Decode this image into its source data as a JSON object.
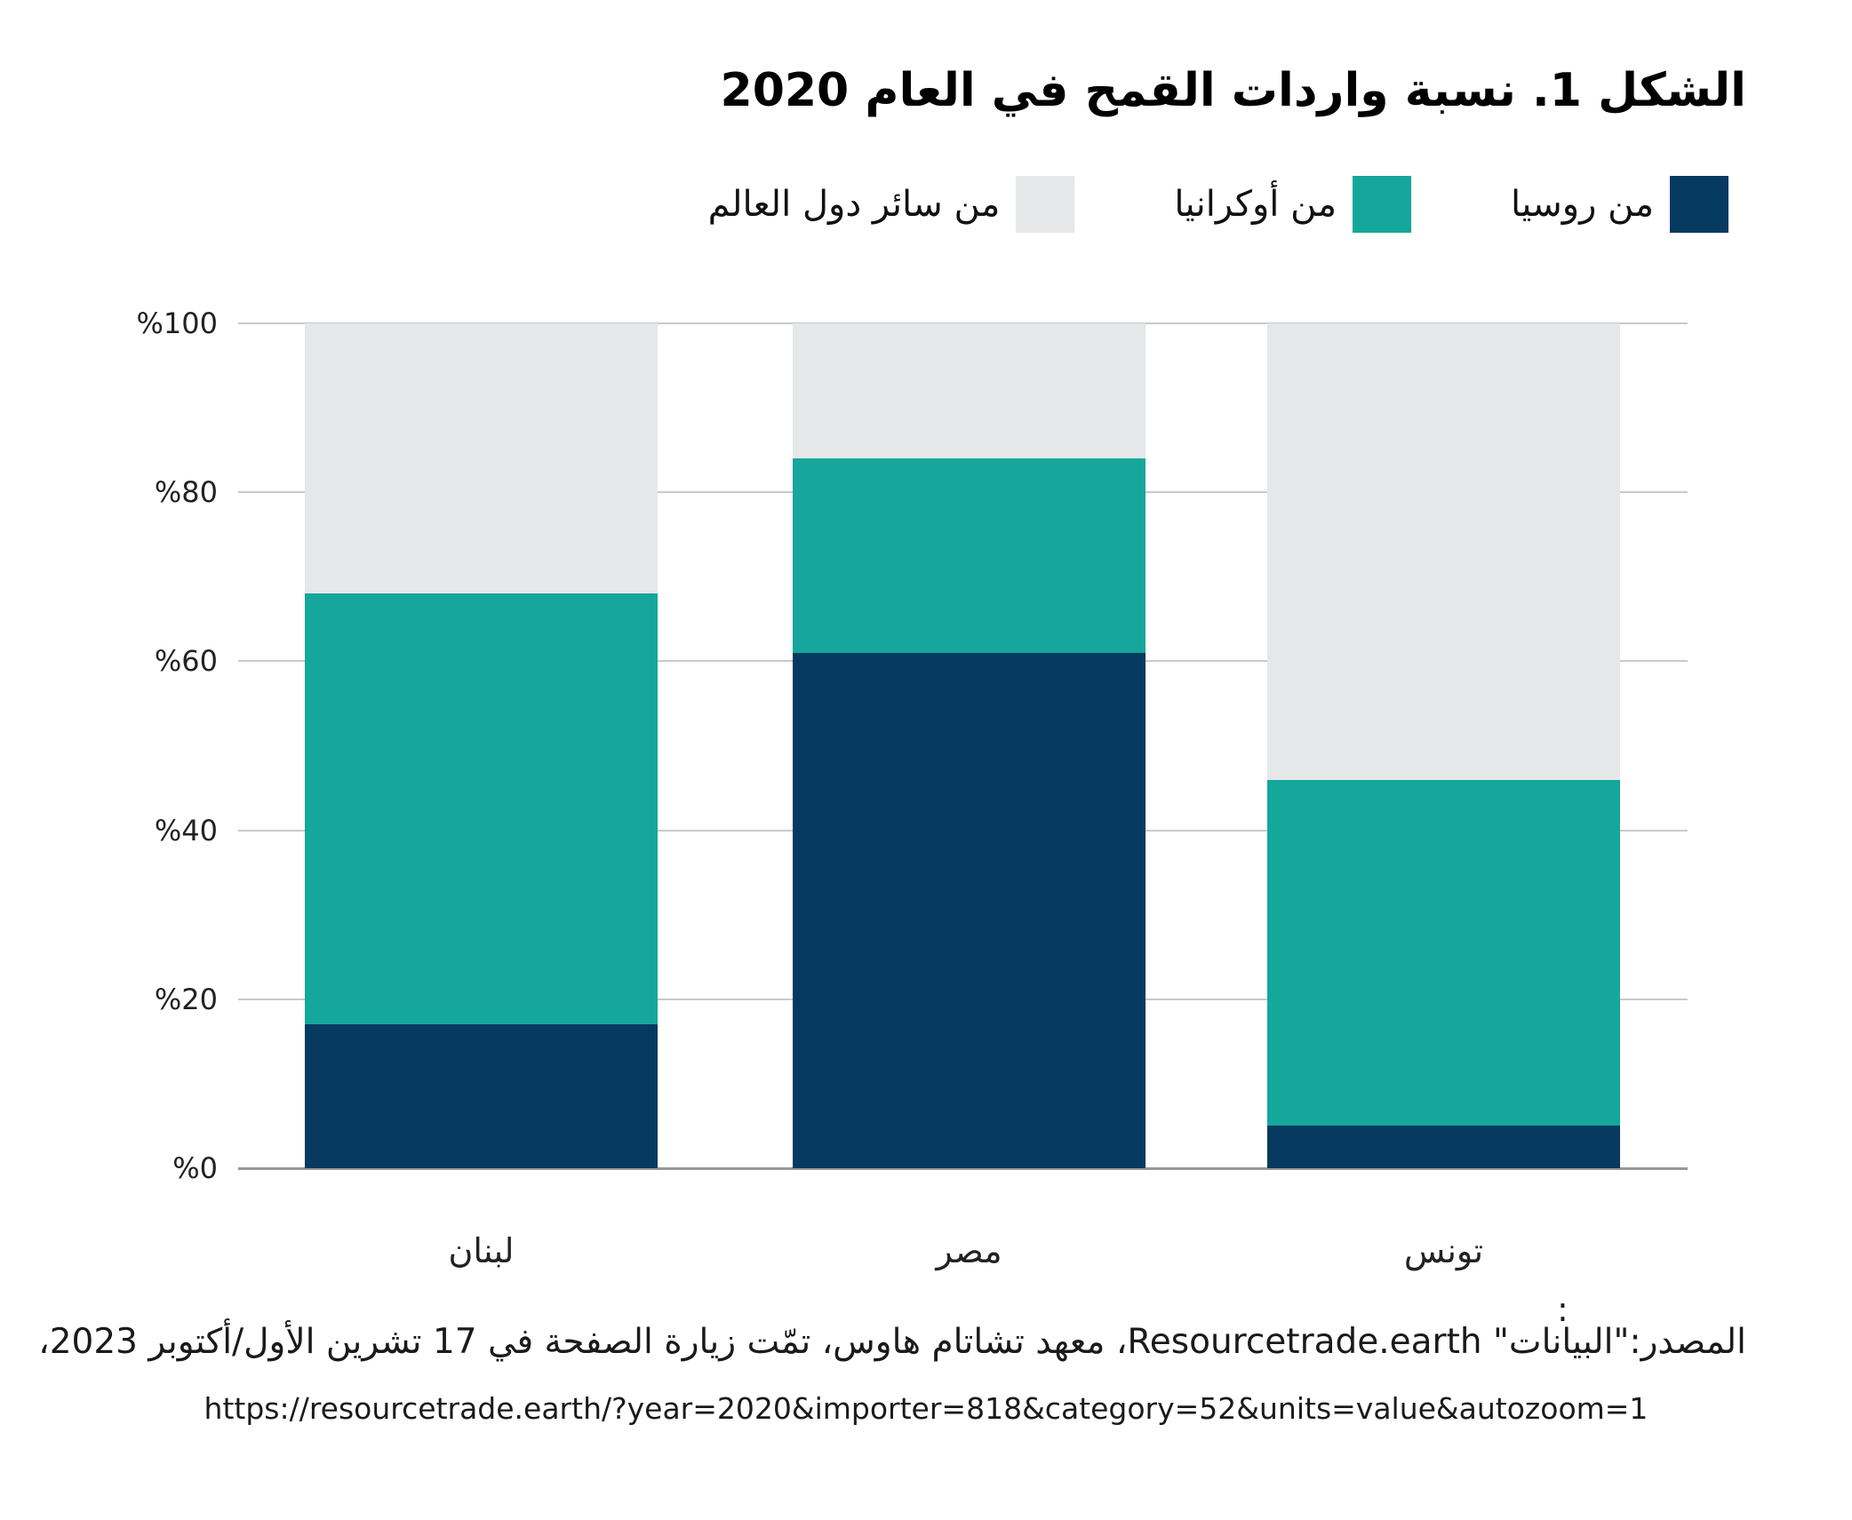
{
  "title": "الشكل 1. نسبة واردات القمح في العام 2020",
  "legend": {
    "items": [
      {
        "label": "من روسيا"
      },
      {
        "label": "من أوكرانيا"
      },
      {
        "label": "من سائر دول العالم"
      }
    ]
  },
  "chart_data": {
    "type": "bar",
    "stacked": true,
    "title": "الشكل 1. نسبة واردات القمح في العام 2020",
    "categories": [
      "لبنان",
      "مصر",
      "تونس"
    ],
    "series": [
      {
        "name": "من روسيا",
        "color": "#073a60",
        "values": [
          17,
          61,
          5
        ]
      },
      {
        "name": "من أوكرانيا",
        "color": "#15a79b",
        "values": [
          51,
          23,
          41
        ]
      },
      {
        "name": "من سائر دول العالم",
        "color": "#e6e7e8",
        "values": [
          32,
          16,
          54
        ]
      }
    ],
    "ylim": [
      0,
      100
    ],
    "yticks": [
      {
        "value": 0,
        "label": "%0"
      },
      {
        "value": 20,
        "label": "%20"
      },
      {
        "value": 40,
        "label": "%40"
      },
      {
        "value": 60,
        "label": "%60"
      },
      {
        "value": 80,
        "label": "%80"
      },
      {
        "value": 100,
        "label": "%100"
      }
    ],
    "grid": true,
    "legend_position": "top-right",
    "unit": "percent"
  },
  "source": {
    "colon": ":",
    "line1": "المصدر:\"البيانات\" Resourcetrade.earth، معهد تشاتام هاوس، تمّت زيارة الصفحة في 17 تشرين الأول/أكتوبر 2023،",
    "url": "https://resourcetrade.earth/?year=2020&importer=818&category=52&units=value&autozoom=1"
  },
  "colors": {
    "russia": "#073a60",
    "ukraine": "#15a79b",
    "rest_of_world": "#e6e7e8",
    "gridline": "#c8c9ca",
    "baseline": "#97989a",
    "background": "#ffffff",
    "text": "#000000"
  }
}
